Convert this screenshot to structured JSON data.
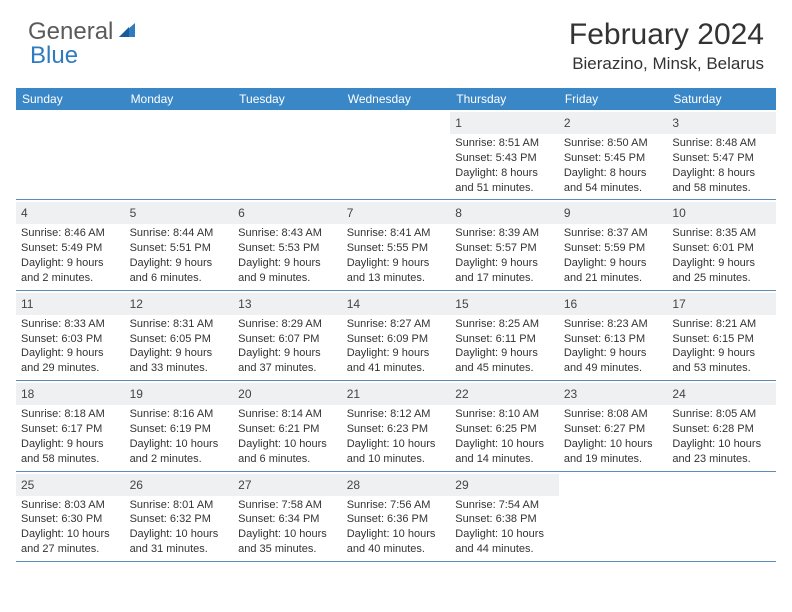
{
  "logo": {
    "general": "General",
    "blue": "Blue"
  },
  "title": "February 2024",
  "location": "Bierazino, Minsk, Belarus",
  "colors": {
    "header_bar": "#3a87c8",
    "daynum_bg": "#eef0f2",
    "week_border": "#5b8db8",
    "logo_gray": "#5a5a5a",
    "logo_blue": "#2f7bbf"
  },
  "dow": [
    "Sunday",
    "Monday",
    "Tuesday",
    "Wednesday",
    "Thursday",
    "Friday",
    "Saturday"
  ],
  "weeks": [
    [
      {
        "n": "",
        "sr": "",
        "ss": "",
        "dl": ""
      },
      {
        "n": "",
        "sr": "",
        "ss": "",
        "dl": ""
      },
      {
        "n": "",
        "sr": "",
        "ss": "",
        "dl": ""
      },
      {
        "n": "",
        "sr": "",
        "ss": "",
        "dl": ""
      },
      {
        "n": "1",
        "sr": "Sunrise: 8:51 AM",
        "ss": "Sunset: 5:43 PM",
        "dl": "Daylight: 8 hours and 51 minutes."
      },
      {
        "n": "2",
        "sr": "Sunrise: 8:50 AM",
        "ss": "Sunset: 5:45 PM",
        "dl": "Daylight: 8 hours and 54 minutes."
      },
      {
        "n": "3",
        "sr": "Sunrise: 8:48 AM",
        "ss": "Sunset: 5:47 PM",
        "dl": "Daylight: 8 hours and 58 minutes."
      }
    ],
    [
      {
        "n": "4",
        "sr": "Sunrise: 8:46 AM",
        "ss": "Sunset: 5:49 PM",
        "dl": "Daylight: 9 hours and 2 minutes."
      },
      {
        "n": "5",
        "sr": "Sunrise: 8:44 AM",
        "ss": "Sunset: 5:51 PM",
        "dl": "Daylight: 9 hours and 6 minutes."
      },
      {
        "n": "6",
        "sr": "Sunrise: 8:43 AM",
        "ss": "Sunset: 5:53 PM",
        "dl": "Daylight: 9 hours and 9 minutes."
      },
      {
        "n": "7",
        "sr": "Sunrise: 8:41 AM",
        "ss": "Sunset: 5:55 PM",
        "dl": "Daylight: 9 hours and 13 minutes."
      },
      {
        "n": "8",
        "sr": "Sunrise: 8:39 AM",
        "ss": "Sunset: 5:57 PM",
        "dl": "Daylight: 9 hours and 17 minutes."
      },
      {
        "n": "9",
        "sr": "Sunrise: 8:37 AM",
        "ss": "Sunset: 5:59 PM",
        "dl": "Daylight: 9 hours and 21 minutes."
      },
      {
        "n": "10",
        "sr": "Sunrise: 8:35 AM",
        "ss": "Sunset: 6:01 PM",
        "dl": "Daylight: 9 hours and 25 minutes."
      }
    ],
    [
      {
        "n": "11",
        "sr": "Sunrise: 8:33 AM",
        "ss": "Sunset: 6:03 PM",
        "dl": "Daylight: 9 hours and 29 minutes."
      },
      {
        "n": "12",
        "sr": "Sunrise: 8:31 AM",
        "ss": "Sunset: 6:05 PM",
        "dl": "Daylight: 9 hours and 33 minutes."
      },
      {
        "n": "13",
        "sr": "Sunrise: 8:29 AM",
        "ss": "Sunset: 6:07 PM",
        "dl": "Daylight: 9 hours and 37 minutes."
      },
      {
        "n": "14",
        "sr": "Sunrise: 8:27 AM",
        "ss": "Sunset: 6:09 PM",
        "dl": "Daylight: 9 hours and 41 minutes."
      },
      {
        "n": "15",
        "sr": "Sunrise: 8:25 AM",
        "ss": "Sunset: 6:11 PM",
        "dl": "Daylight: 9 hours and 45 minutes."
      },
      {
        "n": "16",
        "sr": "Sunrise: 8:23 AM",
        "ss": "Sunset: 6:13 PM",
        "dl": "Daylight: 9 hours and 49 minutes."
      },
      {
        "n": "17",
        "sr": "Sunrise: 8:21 AM",
        "ss": "Sunset: 6:15 PM",
        "dl": "Daylight: 9 hours and 53 minutes."
      }
    ],
    [
      {
        "n": "18",
        "sr": "Sunrise: 8:18 AM",
        "ss": "Sunset: 6:17 PM",
        "dl": "Daylight: 9 hours and 58 minutes."
      },
      {
        "n": "19",
        "sr": "Sunrise: 8:16 AM",
        "ss": "Sunset: 6:19 PM",
        "dl": "Daylight: 10 hours and 2 minutes."
      },
      {
        "n": "20",
        "sr": "Sunrise: 8:14 AM",
        "ss": "Sunset: 6:21 PM",
        "dl": "Daylight: 10 hours and 6 minutes."
      },
      {
        "n": "21",
        "sr": "Sunrise: 8:12 AM",
        "ss": "Sunset: 6:23 PM",
        "dl": "Daylight: 10 hours and 10 minutes."
      },
      {
        "n": "22",
        "sr": "Sunrise: 8:10 AM",
        "ss": "Sunset: 6:25 PM",
        "dl": "Daylight: 10 hours and 14 minutes."
      },
      {
        "n": "23",
        "sr": "Sunrise: 8:08 AM",
        "ss": "Sunset: 6:27 PM",
        "dl": "Daylight: 10 hours and 19 minutes."
      },
      {
        "n": "24",
        "sr": "Sunrise: 8:05 AM",
        "ss": "Sunset: 6:28 PM",
        "dl": "Daylight: 10 hours and 23 minutes."
      }
    ],
    [
      {
        "n": "25",
        "sr": "Sunrise: 8:03 AM",
        "ss": "Sunset: 6:30 PM",
        "dl": "Daylight: 10 hours and 27 minutes."
      },
      {
        "n": "26",
        "sr": "Sunrise: 8:01 AM",
        "ss": "Sunset: 6:32 PM",
        "dl": "Daylight: 10 hours and 31 minutes."
      },
      {
        "n": "27",
        "sr": "Sunrise: 7:58 AM",
        "ss": "Sunset: 6:34 PM",
        "dl": "Daylight: 10 hours and 35 minutes."
      },
      {
        "n": "28",
        "sr": "Sunrise: 7:56 AM",
        "ss": "Sunset: 6:36 PM",
        "dl": "Daylight: 10 hours and 40 minutes."
      },
      {
        "n": "29",
        "sr": "Sunrise: 7:54 AM",
        "ss": "Sunset: 6:38 PM",
        "dl": "Daylight: 10 hours and 44 minutes."
      },
      {
        "n": "",
        "sr": "",
        "ss": "",
        "dl": ""
      },
      {
        "n": "",
        "sr": "",
        "ss": "",
        "dl": ""
      }
    ]
  ]
}
